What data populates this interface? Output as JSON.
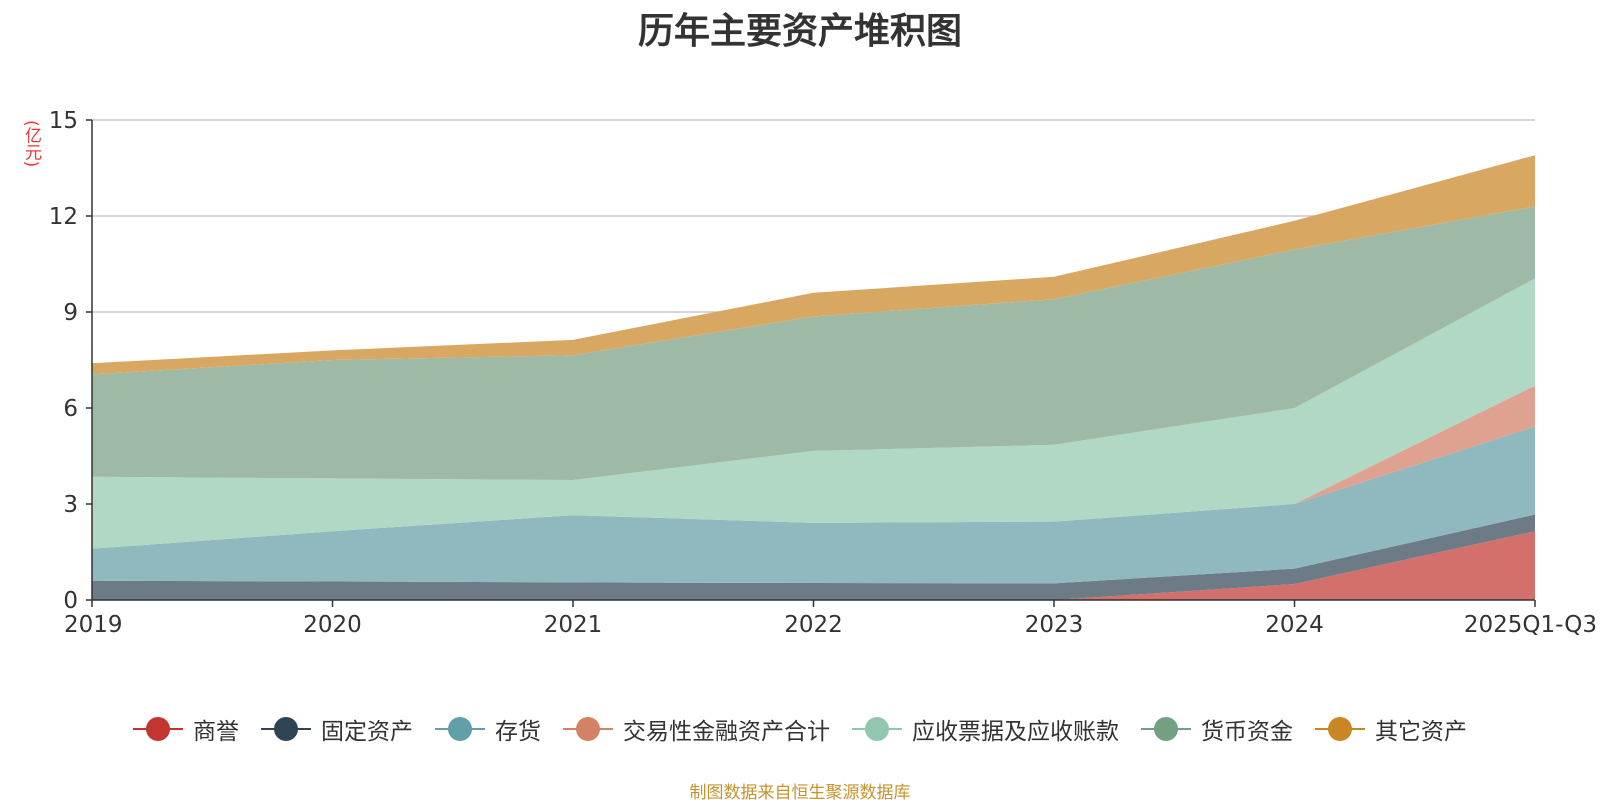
{
  "chart_data": {
    "type": "area",
    "stacked": true,
    "title": "历年主要资产堆积图",
    "ylabel": "(亿元)",
    "xlabel": "",
    "categories": [
      "2019",
      "2020",
      "2021",
      "2022",
      "2023",
      "2024",
      "2025Q1-Q3"
    ],
    "ylim": [
      0,
      15
    ],
    "yticks": [
      0,
      3,
      6,
      9,
      12,
      15
    ],
    "grid": true,
    "legend_position": "bottom",
    "series": [
      {
        "name": "商誉",
        "color": "#c23531",
        "area_color": "#d4706c",
        "values": [
          0,
          0,
          0,
          0,
          0,
          0.5,
          2.15
        ]
      },
      {
        "name": "固定资产",
        "color": "#2f4554",
        "area_color": "#6c7b86",
        "values": [
          0.6,
          0.58,
          0.55,
          0.53,
          0.52,
          0.48,
          0.52
        ]
      },
      {
        "name": "存货",
        "color": "#61a0a8",
        "area_color": "#90b8bf",
        "values": [
          1.0,
          1.57,
          2.1,
          1.88,
          1.93,
          2.02,
          2.75
        ]
      },
      {
        "name": "交易性金融资产合计",
        "color": "#d48265",
        "area_color": "#e0a290",
        "values": [
          0,
          0,
          0,
          0,
          0,
          0,
          1.28
        ]
      },
      {
        "name": "应收票据及应收账款",
        "color": "#91c7ae",
        "area_color": "#b1d8c5",
        "values": [
          2.25,
          1.65,
          1.1,
          2.25,
          2.4,
          3.0,
          3.35
        ]
      },
      {
        "name": "货币资金",
        "color": "#749f83",
        "area_color": "#9eb9a5",
        "values": [
          3.2,
          3.7,
          3.9,
          4.2,
          4.55,
          4.95,
          2.25
        ]
      },
      {
        "name": "其它资产",
        "color": "#ca8622",
        "area_color": "#d8a862",
        "values": [
          0.35,
          0.3,
          0.48,
          0.74,
          0.7,
          0.9,
          1.6
        ]
      }
    ]
  },
  "footer": {
    "source": "制图数据来自恒生聚源数据库"
  }
}
